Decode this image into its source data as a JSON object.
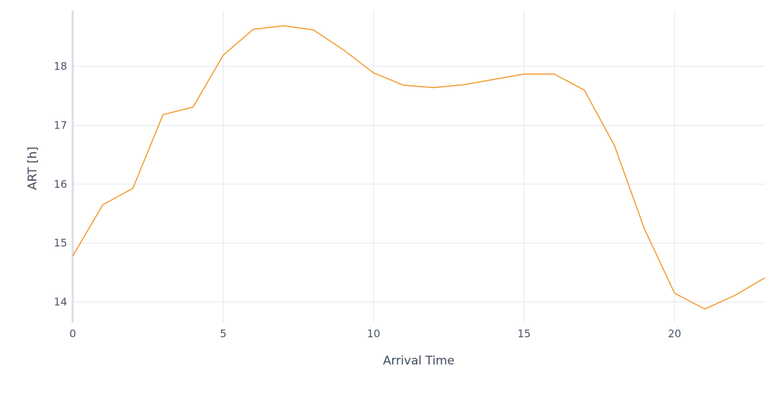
{
  "chart_data": {
    "type": "line",
    "title": "",
    "xlabel": "Arrival Time",
    "ylabel": "ART [h]",
    "xlim": [
      0,
      23
    ],
    "ylim": [
      13.65,
      18.95
    ],
    "x_ticks": [
      0,
      5,
      10,
      15,
      20
    ],
    "y_ticks": [
      14,
      15,
      16,
      17,
      18
    ],
    "grid": true,
    "legend": "none",
    "series": [
      {
        "color": "#f39c34",
        "x": [
          0,
          1,
          2,
          3,
          4,
          5,
          6,
          7,
          8,
          9,
          10,
          11,
          12,
          13,
          14,
          15,
          16,
          17,
          18,
          19,
          20,
          21,
          22,
          23
        ],
        "values": [
          14.78,
          15.65,
          15.93,
          17.18,
          17.31,
          18.19,
          18.63,
          18.69,
          18.62,
          18.28,
          17.89,
          17.68,
          17.64,
          17.69,
          17.78,
          17.87,
          17.87,
          17.6,
          16.66,
          15.24,
          14.15,
          13.88,
          14.11,
          14.41
        ]
      }
    ]
  }
}
